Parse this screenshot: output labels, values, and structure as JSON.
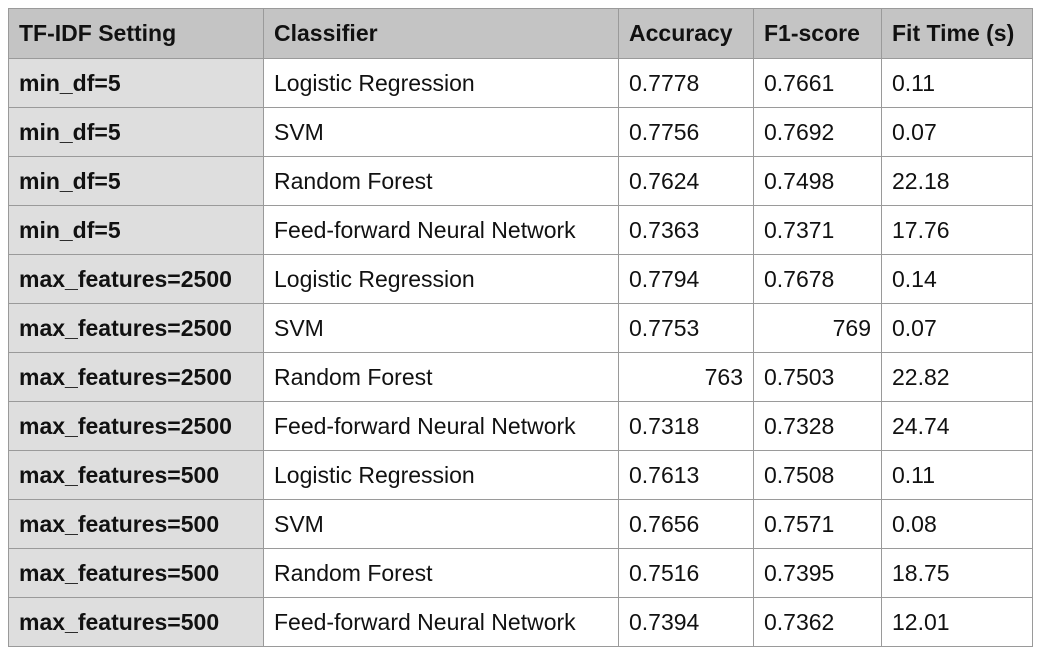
{
  "table": {
    "headers": [
      "TF-IDF Setting",
      "Classifier",
      "Accuracy",
      "F1-score",
      "Fit Time (s)"
    ],
    "rows": [
      {
        "setting": "min_df=5",
        "classifier": "Logistic Regression",
        "accuracy": "0.7778",
        "f1": "0.7661",
        "fit_time": "0.11"
      },
      {
        "setting": "min_df=5",
        "classifier": "SVM",
        "accuracy": "0.7756",
        "f1": "0.7692",
        "fit_time": "0.07"
      },
      {
        "setting": "min_df=5",
        "classifier": "Random Forest",
        "accuracy": "0.7624",
        "f1": "0.7498",
        "fit_time": "22.18"
      },
      {
        "setting": "min_df=5",
        "classifier": "Feed-forward Neural Network",
        "accuracy": "0.7363",
        "f1": "0.7371",
        "fit_time": "17.76"
      },
      {
        "setting": "max_features=2500",
        "classifier": "Logistic Regression",
        "accuracy": "0.7794",
        "f1": "0.7678",
        "fit_time": "0.14"
      },
      {
        "setting": "max_features=2500",
        "classifier": "SVM",
        "accuracy": "0.7753",
        "f1": "769",
        "fit_time": "0.07"
      },
      {
        "setting": "max_features=2500",
        "classifier": "Random Forest",
        "accuracy": "763",
        "f1": "0.7503",
        "fit_time": "22.82"
      },
      {
        "setting": "max_features=2500",
        "classifier": "Feed-forward Neural Network",
        "accuracy": "0.7318",
        "f1": "0.7328",
        "fit_time": "24.74"
      },
      {
        "setting": "max_features=500",
        "classifier": "Logistic Regression",
        "accuracy": "0.7613",
        "f1": "0.7508",
        "fit_time": "0.11"
      },
      {
        "setting": "max_features=500",
        "classifier": "SVM",
        "accuracy": "0.7656",
        "f1": "0.7571",
        "fit_time": "0.08"
      },
      {
        "setting": "max_features=500",
        "classifier": "Random Forest",
        "accuracy": "0.7516",
        "f1": "0.7395",
        "fit_time": "18.75"
      },
      {
        "setting": "max_features=500",
        "classifier": "Feed-forward Neural Network",
        "accuracy": "0.7394",
        "f1": "0.7362",
        "fit_time": "12.01"
      }
    ]
  }
}
